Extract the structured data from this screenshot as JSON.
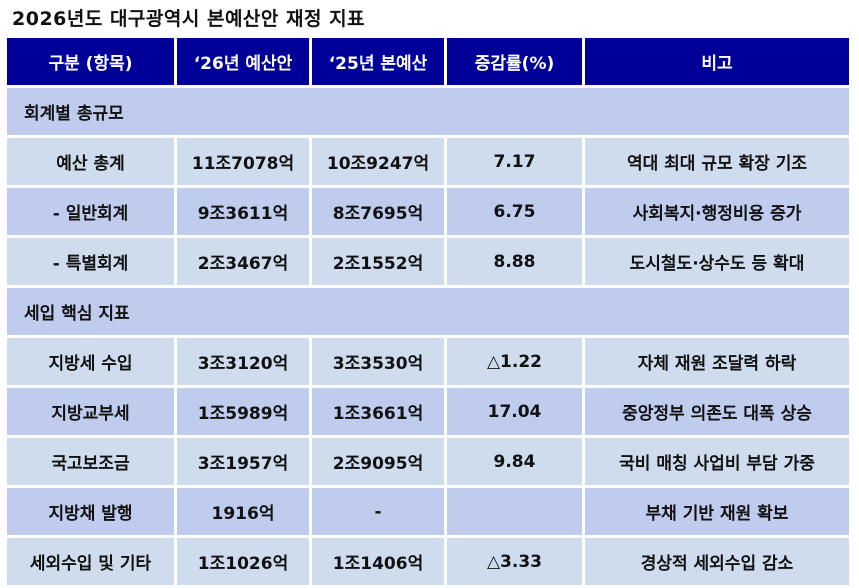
{
  "title": "2026년도 대구광역시 본예산안 재정 지표",
  "colors": {
    "header_bg": "#000099",
    "row_light": "#cfdcee",
    "row_dark": "#bfccee"
  },
  "headers": [
    "구분 (항목)",
    "‘26년 예산안",
    "‘25년 본예산",
    "증감률(%)",
    "비고"
  ],
  "rows": [
    {
      "type": "section",
      "label": "회계별 총규모"
    },
    {
      "type": "light",
      "cells": [
        "예산 총계",
        "11조7078억",
        "10조9247억",
        "7.17",
        "역대 최대 규모 확장 기조"
      ]
    },
    {
      "type": "dark",
      "cells": [
        "- 일반회계",
        "9조3611억",
        "8조7695억",
        "6.75",
        "사회복지·행정비용 증가"
      ]
    },
    {
      "type": "light",
      "cells": [
        "- 특별회계",
        "2조3467억",
        "2조1552억",
        "8.88",
        "도시철도·상수도 등 확대"
      ]
    },
    {
      "type": "section",
      "label": "세입 핵심 지표"
    },
    {
      "type": "light",
      "cells": [
        "지방세 수입",
        "3조3120억",
        "3조3530억",
        "△1.22",
        "자체 재원 조달력 하락"
      ]
    },
    {
      "type": "dark",
      "cells": [
        "지방교부세",
        "1조5989억",
        "1조3661억",
        "17.04",
        "중앙정부 의존도 대폭 상승"
      ]
    },
    {
      "type": "light",
      "cells": [
        "국고보조금",
        "3조1957억",
        "2조9095억",
        "9.84",
        "국비 매칭 사업비 부담 가중"
      ]
    },
    {
      "type": "dark",
      "cells": [
        "지방채 발행",
        "1916억",
        "-",
        "",
        "부채 기반 재원 확보"
      ]
    },
    {
      "type": "light",
      "cells": [
        "세외수입 및 기타",
        "1조1026억",
        "1조1406억",
        "△3.33",
        "경상적 세외수입 감소"
      ]
    }
  ]
}
